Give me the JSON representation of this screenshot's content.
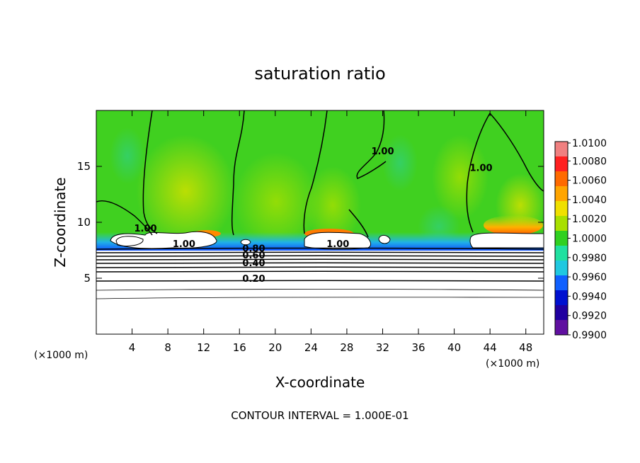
{
  "chart_data": {
    "type": "heatmap",
    "title": "saturation ratio",
    "xlabel": "X-coordinate",
    "ylabel": "Z-coordinate",
    "x_unit_label_left": "(×1000 m)",
    "x_unit_label_right": "(×1000 m)",
    "xlim": [
      0,
      50
    ],
    "ylim": [
      0,
      20
    ],
    "x_ticks": [
      "4",
      "8",
      "12",
      "16",
      "20",
      "24",
      "28",
      "32",
      "36",
      "40",
      "44",
      "48"
    ],
    "x_tick_values": [
      4,
      8,
      12,
      16,
      20,
      24,
      28,
      32,
      36,
      40,
      44,
      48
    ],
    "y_ticks": [
      "5",
      "10",
      "15"
    ],
    "y_tick_values": [
      5,
      10,
      15
    ],
    "colorbar": {
      "labels": [
        "1.0100",
        "1.0080",
        "1.0060",
        "1.0040",
        "1.0020",
        "1.0000",
        "0.9980",
        "0.9960",
        "0.9940",
        "0.9920",
        "0.9900"
      ],
      "values": [
        1.01,
        1.008,
        1.006,
        1.004,
        1.002,
        1.0,
        0.998,
        0.996,
        0.994,
        0.992,
        0.99
      ],
      "colors": [
        "#f08080",
        "#ff2020",
        "#ff6a00",
        "#ffa500",
        "#f0e000",
        "#a8e000",
        "#30d020",
        "#20e0a0",
        "#20c8e0",
        "#1060ff",
        "#0010d0",
        "#2000a0",
        "#6010a0"
      ]
    },
    "contour_labels": [
      {
        "text": "1.00",
        "x": 5.5,
        "z": 9.3
      },
      {
        "text": "1.00",
        "x": 9.8,
        "z": 7.9
      },
      {
        "text": "1.00",
        "x": 27.0,
        "z": 7.9
      },
      {
        "text": "1.00",
        "x": 32.0,
        "z": 16.2
      },
      {
        "text": "1.00",
        "x": 43.0,
        "z": 14.7
      },
      {
        "text": "0.80",
        "x": 17.6,
        "z": 7.5
      },
      {
        "text": "0.60",
        "x": 17.6,
        "z": 6.9
      },
      {
        "text": "0.40",
        "x": 17.6,
        "z": 6.2
      },
      {
        "text": "0.20",
        "x": 17.6,
        "z": 4.8
      }
    ],
    "contour_interval_label": "CONTOUR INTERVAL = 1.000E-01"
  }
}
